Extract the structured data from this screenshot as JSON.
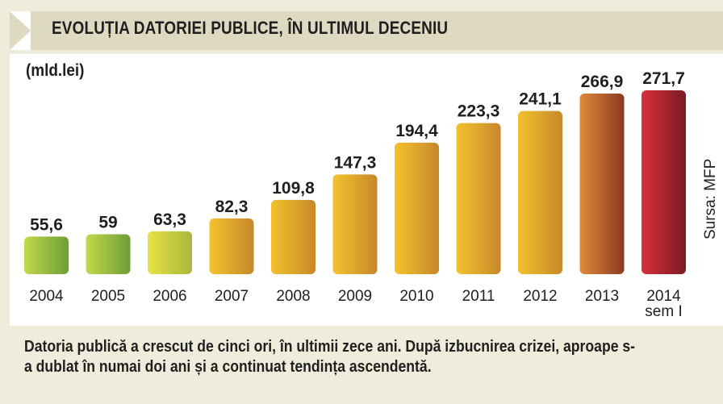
{
  "title": "EVOLUȚIA DATORIEI PUBLICE, ÎN ULTIMUL DECENIU",
  "unit_label": "(mld.lei)",
  "source": "Sursa: MFP",
  "footer_text": "Datoria publică a crescut de cinci ori, în ultimii zece ani. După izbucnirea crizei, aproape s-a dublat în numai doi ani și a continuat tendința ascendentă.",
  "chart_data": {
    "type": "bar",
    "title": "EVOLUȚIA DATORIEI PUBLICE, ÎN ULTIMUL DECENIU",
    "ylabel": "(mld.lei)",
    "xlabel": "",
    "categories": [
      "2004",
      "2005",
      "2006",
      "2007",
      "2008",
      "2009",
      "2010",
      "2011",
      "2012",
      "2013",
      "2014 sem I"
    ],
    "category_lines": [
      [
        "2004"
      ],
      [
        "2005"
      ],
      [
        "2006"
      ],
      [
        "2007"
      ],
      [
        "2008"
      ],
      [
        "2009"
      ],
      [
        "2010"
      ],
      [
        "2011"
      ],
      [
        "2012"
      ],
      [
        "2013"
      ],
      [
        "2014",
        "sem I"
      ]
    ],
    "values": [
      55.6,
      59,
      63.3,
      82.3,
      109.8,
      147.3,
      194.4,
      223.3,
      241.1,
      266.9,
      271.7
    ],
    "value_labels": [
      "55,6",
      "59",
      "63,3",
      "82,3",
      "109,8",
      "147,3",
      "194,4",
      "223,3",
      "241,1",
      "266,9",
      "271,7"
    ],
    "bar_colors": [
      [
        "#c2d94a",
        "#6e9e38"
      ],
      [
        "#c2d94a",
        "#6e9e38"
      ],
      [
        "#e8e244",
        "#a8b83a"
      ],
      [
        "#f3c22e",
        "#c7882a"
      ],
      [
        "#f3c22e",
        "#c7882a"
      ],
      [
        "#f3c22e",
        "#c7882a"
      ],
      [
        "#f3c22e",
        "#c7882a"
      ],
      [
        "#f3c22e",
        "#c7882a"
      ],
      [
        "#f3c22e",
        "#c7882a"
      ],
      [
        "#e08a3a",
        "#8a3a22"
      ],
      [
        "#d8313c",
        "#7a1a22"
      ]
    ],
    "grid": false,
    "legend": "none"
  },
  "colors": {
    "background": "#efecdc",
    "header": "#dedac2",
    "panel": "#ffffff",
    "text": "#1f1f1f"
  }
}
